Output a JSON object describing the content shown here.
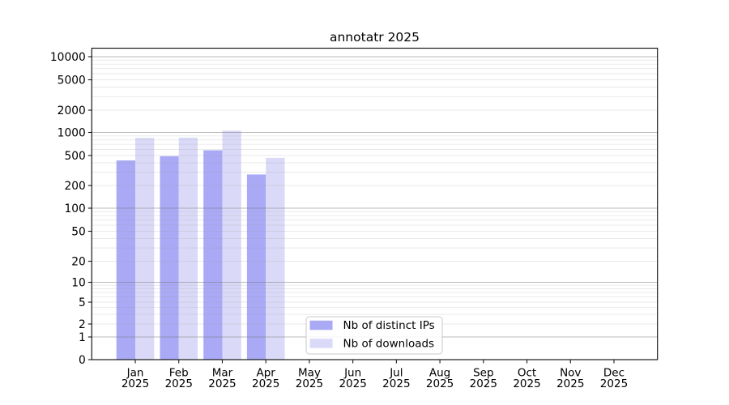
{
  "figure": {
    "title": "annotatr 2025"
  },
  "chart_data": {
    "type": "bar",
    "title": "annotatr 2025",
    "categories": [
      "Jan",
      "Feb",
      "Mar",
      "Apr",
      "May",
      "Jun",
      "Jul",
      "Aug",
      "Sep",
      "Oct",
      "Nov",
      "Dec"
    ],
    "year": "2025",
    "series": [
      {
        "name": "Nb of distinct IPs",
        "color": "#a9a9f6",
        "values": [
          430,
          490,
          585,
          280,
          null,
          null,
          null,
          null,
          null,
          null,
          null,
          null
        ]
      },
      {
        "name": "Nb of downloads",
        "color": "#dadaf8",
        "values": [
          850,
          855,
          1060,
          465,
          null,
          null,
          null,
          null,
          null,
          null,
          null,
          null
        ]
      }
    ],
    "yscale": "symlog",
    "yticks": [
      0,
      1,
      2,
      5,
      10,
      20,
      50,
      100,
      200,
      500,
      1000,
      2000,
      5000,
      10000
    ],
    "ylim": [
      0,
      12500
    ],
    "xlabel": "",
    "ylabel": "",
    "grid": "both",
    "legend": {
      "position": "lower-center-inside",
      "entries": [
        "Nb of distinct IPs",
        "Nb of downloads"
      ]
    }
  }
}
